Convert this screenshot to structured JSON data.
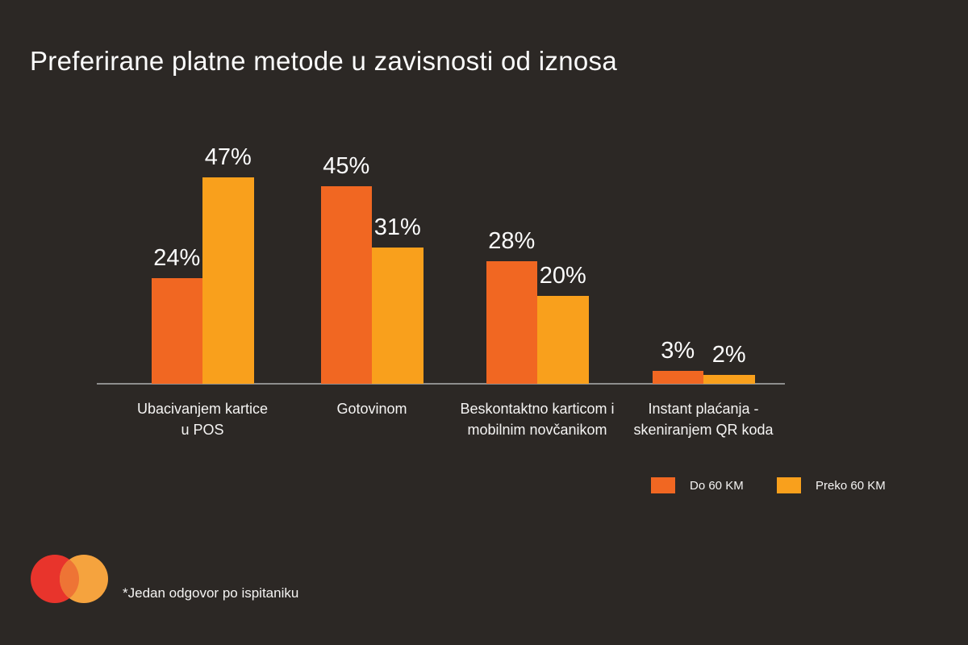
{
  "title": "Preferirane platne metode u zavisnosti od iznosa",
  "footnote": "*Jedan odgovor po ispitaniku",
  "colors": {
    "background": "#2C2825",
    "axis": "#8E8E8E",
    "text": "#FCFCFC"
  },
  "logo": {
    "name": "mastercard-logo",
    "left_circle_color": "#E8342C",
    "right_circle_color": "#F5A33E",
    "overlap_color": "#EE7435"
  },
  "legend": {
    "items": [
      {
        "label": "Do 60 KM",
        "color": "#F16722"
      },
      {
        "label": "Preko 60 KM",
        "color": "#F9A01C"
      }
    ]
  },
  "chart_data": {
    "type": "bar",
    "title": "Preferirane platne metode u zavisnosti od iznosa",
    "categories": [
      [
        "Ubacivanjem kartice",
        "u POS"
      ],
      [
        "Gotovinom"
      ],
      [
        "Beskontaktno karticom i",
        "mobilnim novčanikom"
      ],
      [
        "Instant plaćanja -",
        "skeniranjem QR koda"
      ]
    ],
    "series": [
      {
        "name": "Do 60 KM",
        "color": "#F16722",
        "values": [
          24,
          45,
          28,
          3
        ]
      },
      {
        "name": "Preko 60 KM",
        "color": "#F9A01C",
        "values": [
          47,
          31,
          20,
          2
        ]
      }
    ],
    "value_suffix": "%",
    "xlabel": "",
    "ylabel": "",
    "ylim": [
      0,
      50
    ],
    "grid": false,
    "legend_position": "bottom-right"
  }
}
